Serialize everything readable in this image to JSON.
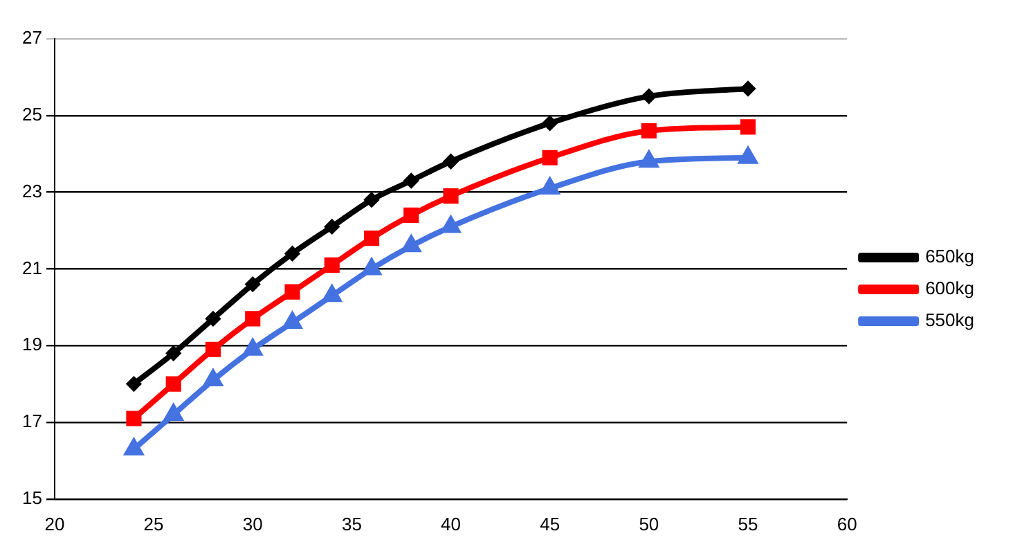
{
  "chart_data": {
    "type": "line",
    "x": [
      24,
      26,
      28,
      30,
      32,
      34,
      36,
      38,
      40,
      45,
      50,
      55
    ],
    "series": [
      {
        "name": "650kg",
        "color": "#000000",
        "marker": "diamond",
        "values": [
          18.0,
          18.8,
          19.7,
          20.6,
          21.4,
          22.1,
          22.8,
          23.3,
          23.8,
          24.8,
          25.5,
          25.7
        ]
      },
      {
        "name": "600kg",
        "color": "#ff0000",
        "marker": "square",
        "values": [
          17.1,
          18.0,
          18.9,
          19.7,
          20.4,
          21.1,
          21.8,
          22.4,
          22.9,
          23.9,
          24.6,
          24.7
        ]
      },
      {
        "name": "550kg",
        "color": "#4472e0",
        "marker": "triangle",
        "values": [
          16.3,
          17.2,
          18.1,
          18.9,
          19.6,
          20.3,
          21.0,
          21.6,
          22.1,
          23.1,
          23.8,
          23.9
        ]
      }
    ],
    "xlim": [
      20,
      60
    ],
    "xticks": [
      20,
      25,
      30,
      35,
      40,
      45,
      50,
      55,
      60
    ],
    "ylim": [
      15,
      27
    ],
    "yticks": [
      15,
      17,
      19,
      21,
      23,
      25,
      27
    ],
    "grid": "y",
    "legend": "right",
    "line_style": "solid"
  }
}
